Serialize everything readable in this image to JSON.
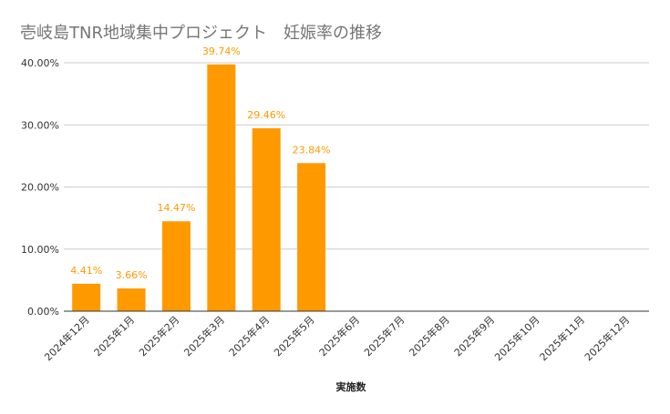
{
  "chart_data": {
    "type": "bar",
    "title": "壱岐島TNR地域集中プロジェクト　妊娠率の推移",
    "xlabel": "実施数",
    "ylabel": "",
    "categories": [
      "2024年12月",
      "2025年1月",
      "2025年2月",
      "2025年3月",
      "2025年4月",
      "2025年5月",
      "2025年6月",
      "2025年7月",
      "2025年8月",
      "2025年9月",
      "2025年10月",
      "2025年11月",
      "2025年12月"
    ],
    "values": [
      4.41,
      3.66,
      14.47,
      39.74,
      29.46,
      23.84,
      null,
      null,
      null,
      null,
      null,
      null,
      null
    ],
    "data_labels": [
      "4.41%",
      "3.66%",
      "14.47%",
      "39.74%",
      "29.46%",
      "23.84%",
      "",
      "",
      "",
      "",
      "",
      "",
      ""
    ],
    "ylim": [
      0,
      40
    ],
    "yticks": [
      0,
      10,
      20,
      30,
      40
    ],
    "ytick_labels": [
      "0.00%",
      "10.00%",
      "20.00%",
      "30.00%",
      "40.00%"
    ],
    "grid": true,
    "legend": "none",
    "colors": {
      "bar": "#ff9900",
      "label": "#ff9900",
      "grid": "#cccccc",
      "axis": "#333333",
      "title": "#757575"
    }
  }
}
